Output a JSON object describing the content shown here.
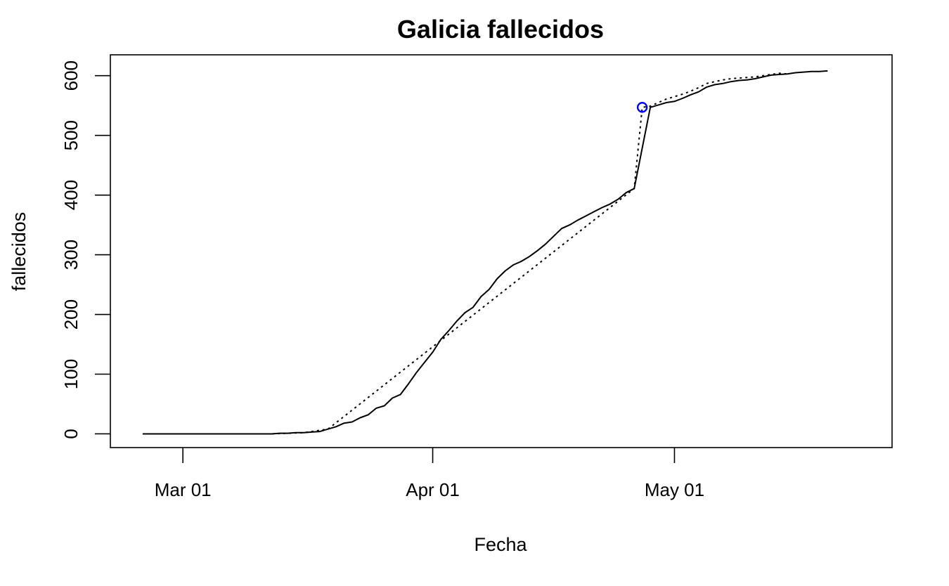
{
  "chart_data": {
    "type": "line",
    "title": "Galicia fallecidos",
    "xlabel": "Fecha",
    "ylabel": "fallecidos",
    "xlim": [
      "2020-02-21",
      "2020-05-28"
    ],
    "ylim": [
      -23,
      635
    ],
    "x_ticks": [
      {
        "date": "2020-03-01",
        "label": "Mar 01"
      },
      {
        "date": "2020-04-01",
        "label": "Apr 01"
      },
      {
        "date": "2020-05-01",
        "label": "May 01"
      }
    ],
    "y_ticks": [
      {
        "value": 0,
        "label": "0"
      },
      {
        "value": 100,
        "label": "100"
      },
      {
        "value": 200,
        "label": "200"
      },
      {
        "value": 300,
        "label": "300"
      },
      {
        "value": 400,
        "label": "400"
      },
      {
        "value": 500,
        "label": "500"
      },
      {
        "value": 600,
        "label": "600"
      }
    ],
    "grid": false,
    "series": [
      {
        "line_style": "solid",
        "points": [
          [
            "2020-02-25",
            0
          ],
          [
            "2020-03-12",
            0
          ],
          [
            "2020-03-13",
            1
          ],
          [
            "2020-03-14",
            1
          ],
          [
            "2020-03-15",
            2
          ],
          [
            "2020-03-16",
            2
          ],
          [
            "2020-03-17",
            3
          ],
          [
            "2020-03-18",
            4
          ],
          [
            "2020-03-19",
            8
          ],
          [
            "2020-03-20",
            12
          ],
          [
            "2020-03-21",
            18
          ],
          [
            "2020-03-22",
            20
          ],
          [
            "2020-03-23",
            27
          ],
          [
            "2020-03-24",
            32
          ],
          [
            "2020-03-25",
            43
          ],
          [
            "2020-03-26",
            47
          ],
          [
            "2020-03-27",
            60
          ],
          [
            "2020-03-28",
            66
          ],
          [
            "2020-03-29",
            84
          ],
          [
            "2020-03-30",
            103
          ],
          [
            "2020-03-31",
            120
          ],
          [
            "2020-04-01",
            137
          ],
          [
            "2020-04-02",
            158
          ],
          [
            "2020-04-03",
            173
          ],
          [
            "2020-04-04",
            189
          ],
          [
            "2020-04-05",
            203
          ],
          [
            "2020-04-06",
            212
          ],
          [
            "2020-04-07",
            230
          ],
          [
            "2020-04-08",
            242
          ],
          [
            "2020-04-09",
            260
          ],
          [
            "2020-04-10",
            273
          ],
          [
            "2020-04-11",
            283
          ],
          [
            "2020-04-12",
            289
          ],
          [
            "2020-04-13",
            297
          ],
          [
            "2020-04-14",
            307
          ],
          [
            "2020-04-15",
            318
          ],
          [
            "2020-04-16",
            331
          ],
          [
            "2020-04-17",
            344
          ],
          [
            "2020-04-18",
            350
          ],
          [
            "2020-04-19",
            358
          ],
          [
            "2020-04-20",
            365
          ],
          [
            "2020-04-21",
            372
          ],
          [
            "2020-04-22",
            379
          ],
          [
            "2020-04-23",
            385
          ],
          [
            "2020-04-24",
            393
          ],
          [
            "2020-04-25",
            404
          ],
          [
            "2020-04-26",
            411
          ],
          [
            "2020-04-28",
            547
          ],
          [
            "2020-04-29",
            551
          ],
          [
            "2020-04-30",
            555
          ],
          [
            "2020-05-01",
            557
          ],
          [
            "2020-05-02",
            562
          ],
          [
            "2020-05-03",
            568
          ],
          [
            "2020-05-04",
            573
          ],
          [
            "2020-05-05",
            581
          ],
          [
            "2020-05-06",
            585
          ],
          [
            "2020-05-07",
            587
          ],
          [
            "2020-05-08",
            590
          ],
          [
            "2020-05-09",
            592
          ],
          [
            "2020-05-10",
            593
          ],
          [
            "2020-05-11",
            595
          ],
          [
            "2020-05-12",
            598
          ],
          [
            "2020-05-13",
            601
          ],
          [
            "2020-05-14",
            602
          ],
          [
            "2020-05-15",
            603
          ],
          [
            "2020-05-16",
            605
          ],
          [
            "2020-05-17",
            606
          ],
          [
            "2020-05-18",
            607
          ],
          [
            "2020-05-19",
            607
          ],
          [
            "2020-05-20",
            608
          ]
        ]
      },
      {
        "line_style": "dotted",
        "points": [
          [
            "2020-03-03",
            0
          ],
          [
            "2020-03-12",
            0
          ],
          [
            "2020-03-16",
            2
          ],
          [
            "2020-03-19",
            8
          ],
          [
            "2020-04-26",
            411
          ],
          [
            "2020-04-27",
            547
          ],
          [
            "2020-04-28",
            549
          ],
          [
            "2020-04-29",
            555
          ],
          [
            "2020-04-30",
            561
          ],
          [
            "2020-05-01",
            565
          ],
          [
            "2020-05-02",
            569
          ],
          [
            "2020-05-03",
            574
          ],
          [
            "2020-05-04",
            580
          ],
          [
            "2020-05-05",
            587
          ],
          [
            "2020-05-06",
            590
          ],
          [
            "2020-05-07",
            593
          ],
          [
            "2020-05-08",
            595
          ],
          [
            "2020-05-09",
            596
          ],
          [
            "2020-05-10",
            597
          ],
          [
            "2020-05-11",
            598
          ],
          [
            "2020-05-12",
            600
          ],
          [
            "2020-05-13",
            602
          ],
          [
            "2020-05-14",
            604
          ],
          [
            "2020-05-15",
            603
          ]
        ]
      }
    ],
    "highlight_point": {
      "date": "2020-04-27",
      "value": 547,
      "marker": "open-circle",
      "color": "#0000ff"
    }
  }
}
